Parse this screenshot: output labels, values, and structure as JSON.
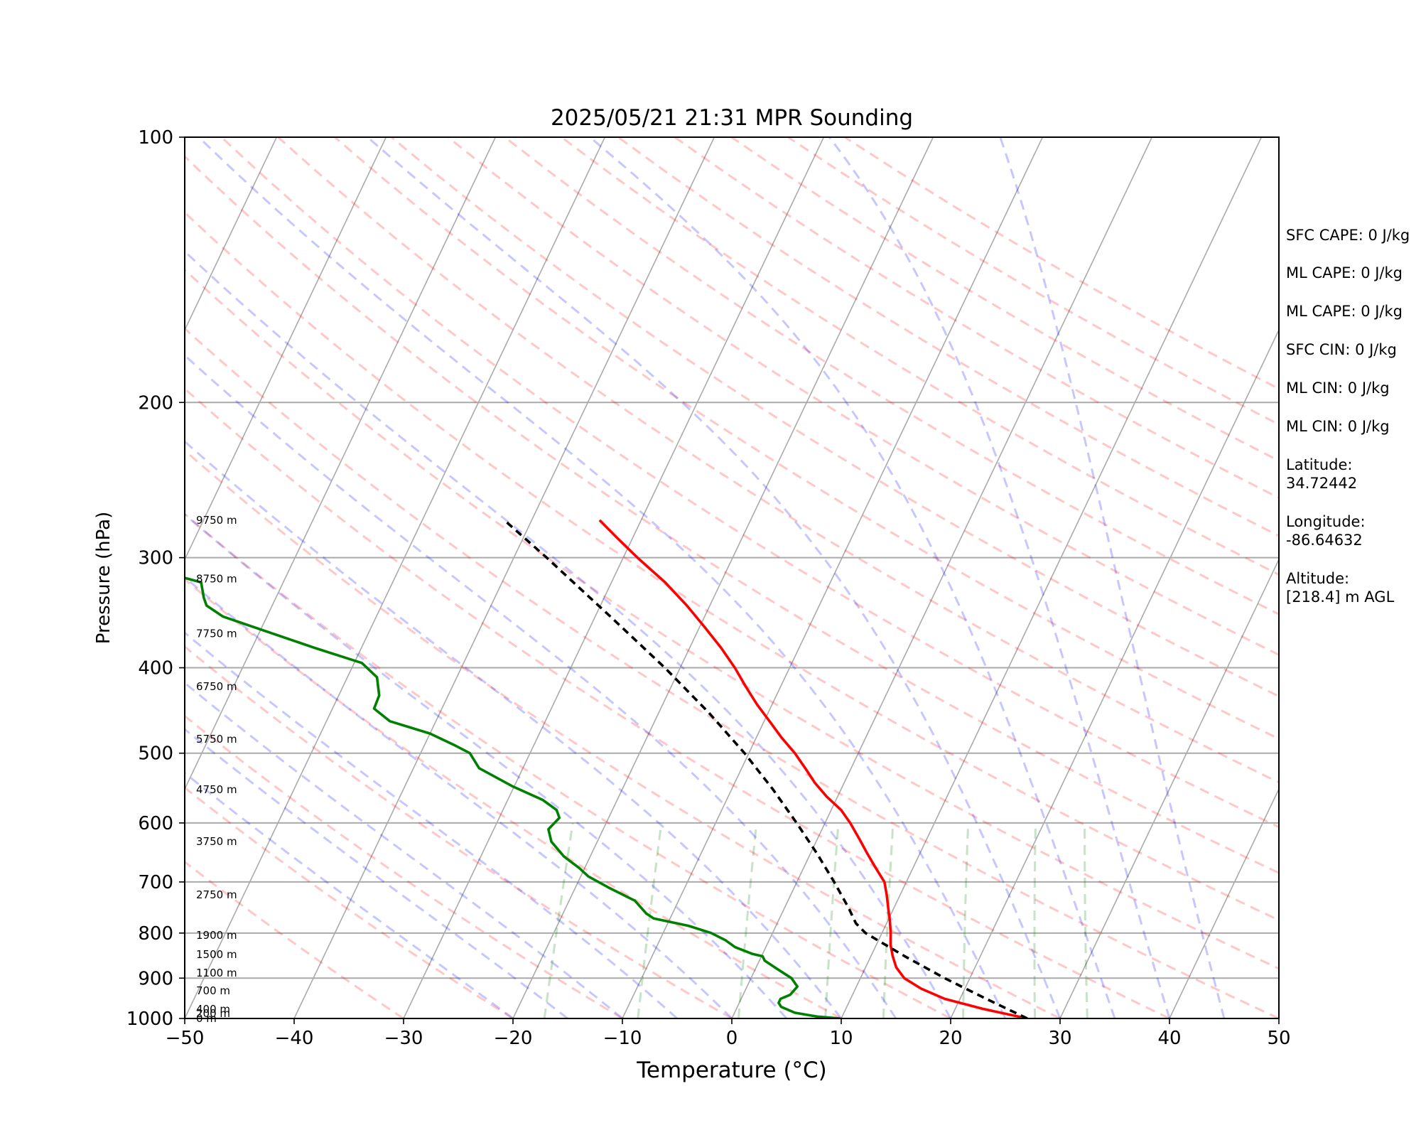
{
  "chart_data": {
    "type": "line",
    "title": "2025/05/21 21:31 MPR Sounding",
    "xlabel": "Temperature (°C)",
    "ylabel": "Pressure (hPa)",
    "xlim": [
      -50,
      50
    ],
    "ylim": [
      1000,
      100
    ],
    "y_scale": "log",
    "skew": "skew-T",
    "x_ticks": [
      "−50",
      "−40",
      "−30",
      "−20",
      "−10",
      "0",
      "10",
      "20",
      "30",
      "40",
      "50"
    ],
    "y_ticks": [
      "100",
      "200",
      "300",
      "400",
      "500",
      "600",
      "700",
      "800",
      "900",
      "1000"
    ],
    "grid": true,
    "height_labels": [
      {
        "p": 1000,
        "text": "0 m"
      },
      {
        "p": 987,
        "text": "200 m"
      },
      {
        "p": 976,
        "text": "400 m"
      },
      {
        "p": 930,
        "text": "700 m"
      },
      {
        "p": 888,
        "text": "1100 m"
      },
      {
        "p": 846,
        "text": "1500 m"
      },
      {
        "p": 805,
        "text": "1900 m"
      },
      {
        "p": 724,
        "text": "2750 m"
      },
      {
        "p": 630,
        "text": "3750 m"
      },
      {
        "p": 550,
        "text": "4750 m"
      },
      {
        "p": 482,
        "text": "5750 m"
      },
      {
        "p": 420,
        "text": "6750 m"
      },
      {
        "p": 366,
        "text": "7750 m"
      },
      {
        "p": 317,
        "text": "8750 m"
      },
      {
        "p": 272,
        "text": "9750 m"
      }
    ],
    "series": [
      {
        "role": "temperature",
        "color": "#ff0000",
        "points": [
          [
            1000,
            27.0
          ],
          [
            975,
            22.5
          ],
          [
            950,
            18.6
          ],
          [
            925,
            16.0
          ],
          [
            900,
            14.0
          ],
          [
            875,
            12.8
          ],
          [
            850,
            12.0
          ],
          [
            825,
            11.3
          ],
          [
            800,
            10.8
          ],
          [
            775,
            10.2
          ],
          [
            750,
            9.5
          ],
          [
            725,
            8.8
          ],
          [
            700,
            8.0
          ],
          [
            675,
            6.6
          ],
          [
            650,
            5.2
          ],
          [
            625,
            3.8
          ],
          [
            600,
            2.3
          ],
          [
            580,
            0.9
          ],
          [
            560,
            -1.0
          ],
          [
            540,
            -2.7
          ],
          [
            520,
            -4.2
          ],
          [
            500,
            -5.8
          ],
          [
            480,
            -7.7
          ],
          [
            460,
            -9.5
          ],
          [
            440,
            -11.4
          ],
          [
            420,
            -13.2
          ],
          [
            400,
            -15.0
          ],
          [
            380,
            -17.1
          ],
          [
            360,
            -19.5
          ],
          [
            340,
            -22.1
          ],
          [
            320,
            -25.1
          ],
          [
            300,
            -28.7
          ],
          [
            285,
            -31.4
          ],
          [
            272,
            -33.8
          ]
        ]
      },
      {
        "role": "dewpoint",
        "color": "#008000",
        "points": [
          [
            1000,
            9.9
          ],
          [
            995,
            7.7
          ],
          [
            985,
            5.5
          ],
          [
            970,
            4.0
          ],
          [
            960,
            3.6
          ],
          [
            950,
            3.6
          ],
          [
            940,
            4.3
          ],
          [
            920,
            4.6
          ],
          [
            900,
            3.7
          ],
          [
            880,
            2.1
          ],
          [
            860,
            0.5
          ],
          [
            850,
            0.1
          ],
          [
            845,
            -0.9
          ],
          [
            830,
            -2.8
          ],
          [
            815,
            -4.0
          ],
          [
            800,
            -5.6
          ],
          [
            785,
            -8.0
          ],
          [
            770,
            -11.5
          ],
          [
            760,
            -12.4
          ],
          [
            735,
            -14.0
          ],
          [
            710,
            -17.0
          ],
          [
            690,
            -19.3
          ],
          [
            675,
            -20.5
          ],
          [
            655,
            -22.4
          ],
          [
            630,
            -24.2
          ],
          [
            610,
            -25.0
          ],
          [
            592,
            -24.5
          ],
          [
            580,
            -25.1
          ],
          [
            565,
            -26.8
          ],
          [
            545,
            -30.2
          ],
          [
            520,
            -34.0
          ],
          [
            500,
            -35.5
          ],
          [
            490,
            -37.2
          ],
          [
            475,
            -40.0
          ],
          [
            460,
            -44.2
          ],
          [
            445,
            -46.2
          ],
          [
            430,
            -46.3
          ],
          [
            410,
            -47.3
          ],
          [
            395,
            -49.3
          ],
          [
            380,
            -54.2
          ],
          [
            365,
            -59.0
          ],
          [
            350,
            -64.0
          ],
          [
            340,
            -66.0
          ],
          [
            333,
            -66.6
          ],
          [
            320,
            -67.5
          ],
          [
            312,
            -71.2
          ],
          [
            300,
            -79.0
          ],
          [
            290,
            -78.0
          ],
          [
            280,
            -76.5
          ],
          [
            272,
            -73.5
          ]
        ]
      },
      {
        "role": "parcel",
        "color": "#000000",
        "points": [
          [
            1000,
            27.0
          ],
          [
            950,
            22.4
          ],
          [
            900,
            17.7
          ],
          [
            850,
            13.1
          ],
          [
            800,
            8.5
          ],
          [
            780,
            7.2
          ],
          [
            750,
            5.9
          ],
          [
            700,
            3.4
          ],
          [
            650,
            0.6
          ],
          [
            600,
            -2.6
          ],
          [
            550,
            -6.2
          ],
          [
            500,
            -10.4
          ],
          [
            450,
            -15.4
          ],
          [
            400,
            -21.4
          ],
          [
            350,
            -28.6
          ],
          [
            300,
            -37.0
          ],
          [
            272,
            -42.5
          ]
        ]
      }
    ]
  },
  "stats": {
    "sfc_cape": "SFC CAPE: 0 J/kg",
    "ml_cape_1": "ML CAPE: 0 J/kg",
    "ml_cape_2": "ML CAPE: 0 J/kg",
    "sfc_cin": "SFC CIN: 0 J/kg",
    "ml_cin_1": "ML CIN: 0 J/kg",
    "ml_cin_2": "ML CIN: 0 J/kg",
    "latitude": "Latitude:\n34.72442",
    "longitude": "Longitude:\n-86.64632",
    "altitude": "Altitude:\n[218.4] m AGL"
  }
}
